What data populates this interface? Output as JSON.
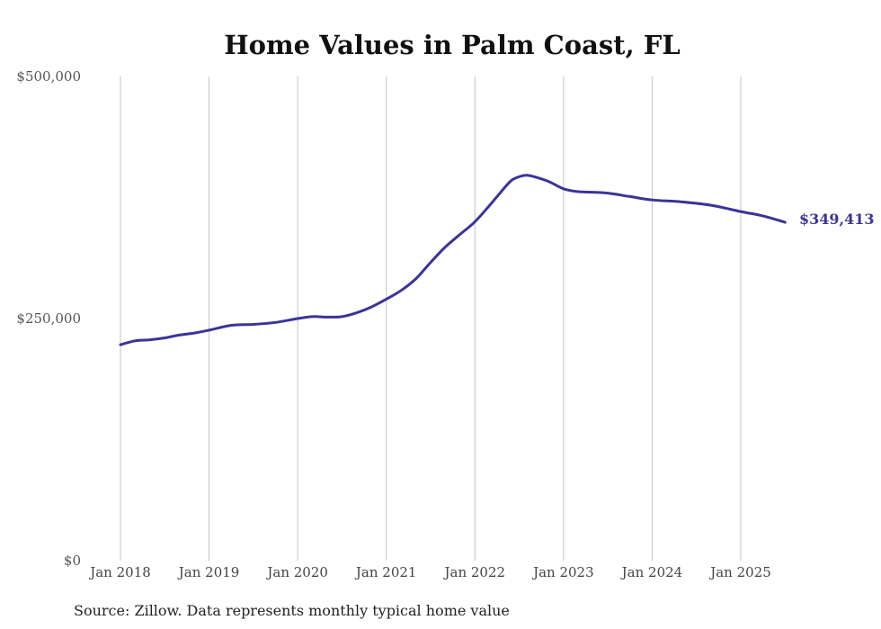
{
  "chart_data": {
    "type": "line",
    "title": "Home Values in Palm Coast, FL",
    "xlabel": "",
    "ylabel": "",
    "ylim": [
      0,
      500000
    ],
    "yticks": [
      {
        "value": 0,
        "label": "$0"
      },
      {
        "value": 250000,
        "label": "$250,000"
      },
      {
        "value": 500000,
        "label": "$500,000"
      }
    ],
    "xlim": [
      2018.0,
      2025.5
    ],
    "xticks": [
      {
        "value": 2018,
        "label": "Jan 2018"
      },
      {
        "value": 2019,
        "label": "Jan 2019"
      },
      {
        "value": 2020,
        "label": "Jan 2020"
      },
      {
        "value": 2021,
        "label": "Jan 2021"
      },
      {
        "value": 2022,
        "label": "Jan 2022"
      },
      {
        "value": 2023,
        "label": "Jan 2023"
      },
      {
        "value": 2024,
        "label": "Jan 2024"
      },
      {
        "value": 2025,
        "label": "Jan 2025"
      }
    ],
    "grid": "vertical",
    "series": [
      {
        "name": "",
        "color": "#3b3497",
        "points": [
          [
            2018.0,
            223000
          ],
          [
            2018.167,
            227000
          ],
          [
            2018.333,
            228000
          ],
          [
            2018.5,
            230000
          ],
          [
            2018.667,
            233000
          ],
          [
            2018.833,
            235000
          ],
          [
            2019.0,
            238000
          ],
          [
            2019.25,
            243000
          ],
          [
            2019.5,
            244000
          ],
          [
            2019.75,
            246000
          ],
          [
            2020.0,
            250000
          ],
          [
            2020.167,
            252000
          ],
          [
            2020.333,
            251500
          ],
          [
            2020.5,
            252000
          ],
          [
            2020.667,
            256000
          ],
          [
            2020.833,
            262000
          ],
          [
            2021.0,
            270000
          ],
          [
            2021.167,
            279000
          ],
          [
            2021.333,
            291000
          ],
          [
            2021.5,
            308000
          ],
          [
            2021.667,
            324000
          ],
          [
            2021.833,
            337000
          ],
          [
            2022.0,
            350000
          ],
          [
            2022.167,
            367000
          ],
          [
            2022.333,
            385000
          ],
          [
            2022.417,
            393000
          ],
          [
            2022.5,
            396500
          ],
          [
            2022.583,
            398000
          ],
          [
            2022.667,
            396500
          ],
          [
            2022.833,
            391500
          ],
          [
            2023.0,
            384000
          ],
          [
            2023.167,
            381000
          ],
          [
            2023.333,
            380500
          ],
          [
            2023.5,
            379500
          ],
          [
            2023.75,
            376000
          ],
          [
            2024.0,
            372500
          ],
          [
            2024.333,
            370500
          ],
          [
            2024.667,
            367000
          ],
          [
            2025.0,
            360500
          ],
          [
            2025.25,
            356000
          ],
          [
            2025.5,
            349413
          ]
        ]
      }
    ],
    "end_label": "$349,413"
  },
  "source_text": "Source: Zillow. Data represents monthly typical home value"
}
